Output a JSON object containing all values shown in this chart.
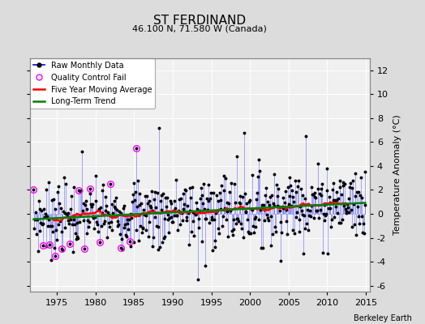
{
  "title": "ST FERDINAND",
  "subtitle": "46.100 N, 71.580 W (Canada)",
  "ylabel": "Temperature Anomaly (°C)",
  "credit": "Berkeley Earth",
  "xlim": [
    1971.5,
    2015.5
  ],
  "ylim": [
    -6.5,
    13
  ],
  "yticks": [
    -6,
    -4,
    -2,
    0,
    2,
    4,
    6,
    8,
    10,
    12
  ],
  "xticks": [
    1975,
    1980,
    1985,
    1990,
    1995,
    2000,
    2005,
    2010,
    2015
  ],
  "bg_color": "#dcdcdc",
  "plot_bg_color": "#f0f0f0",
  "line_color": "#6666ff",
  "dot_color": "#000000",
  "qc_color": "magenta",
  "ma_color": "red",
  "trend_color": "green",
  "seed": 7
}
